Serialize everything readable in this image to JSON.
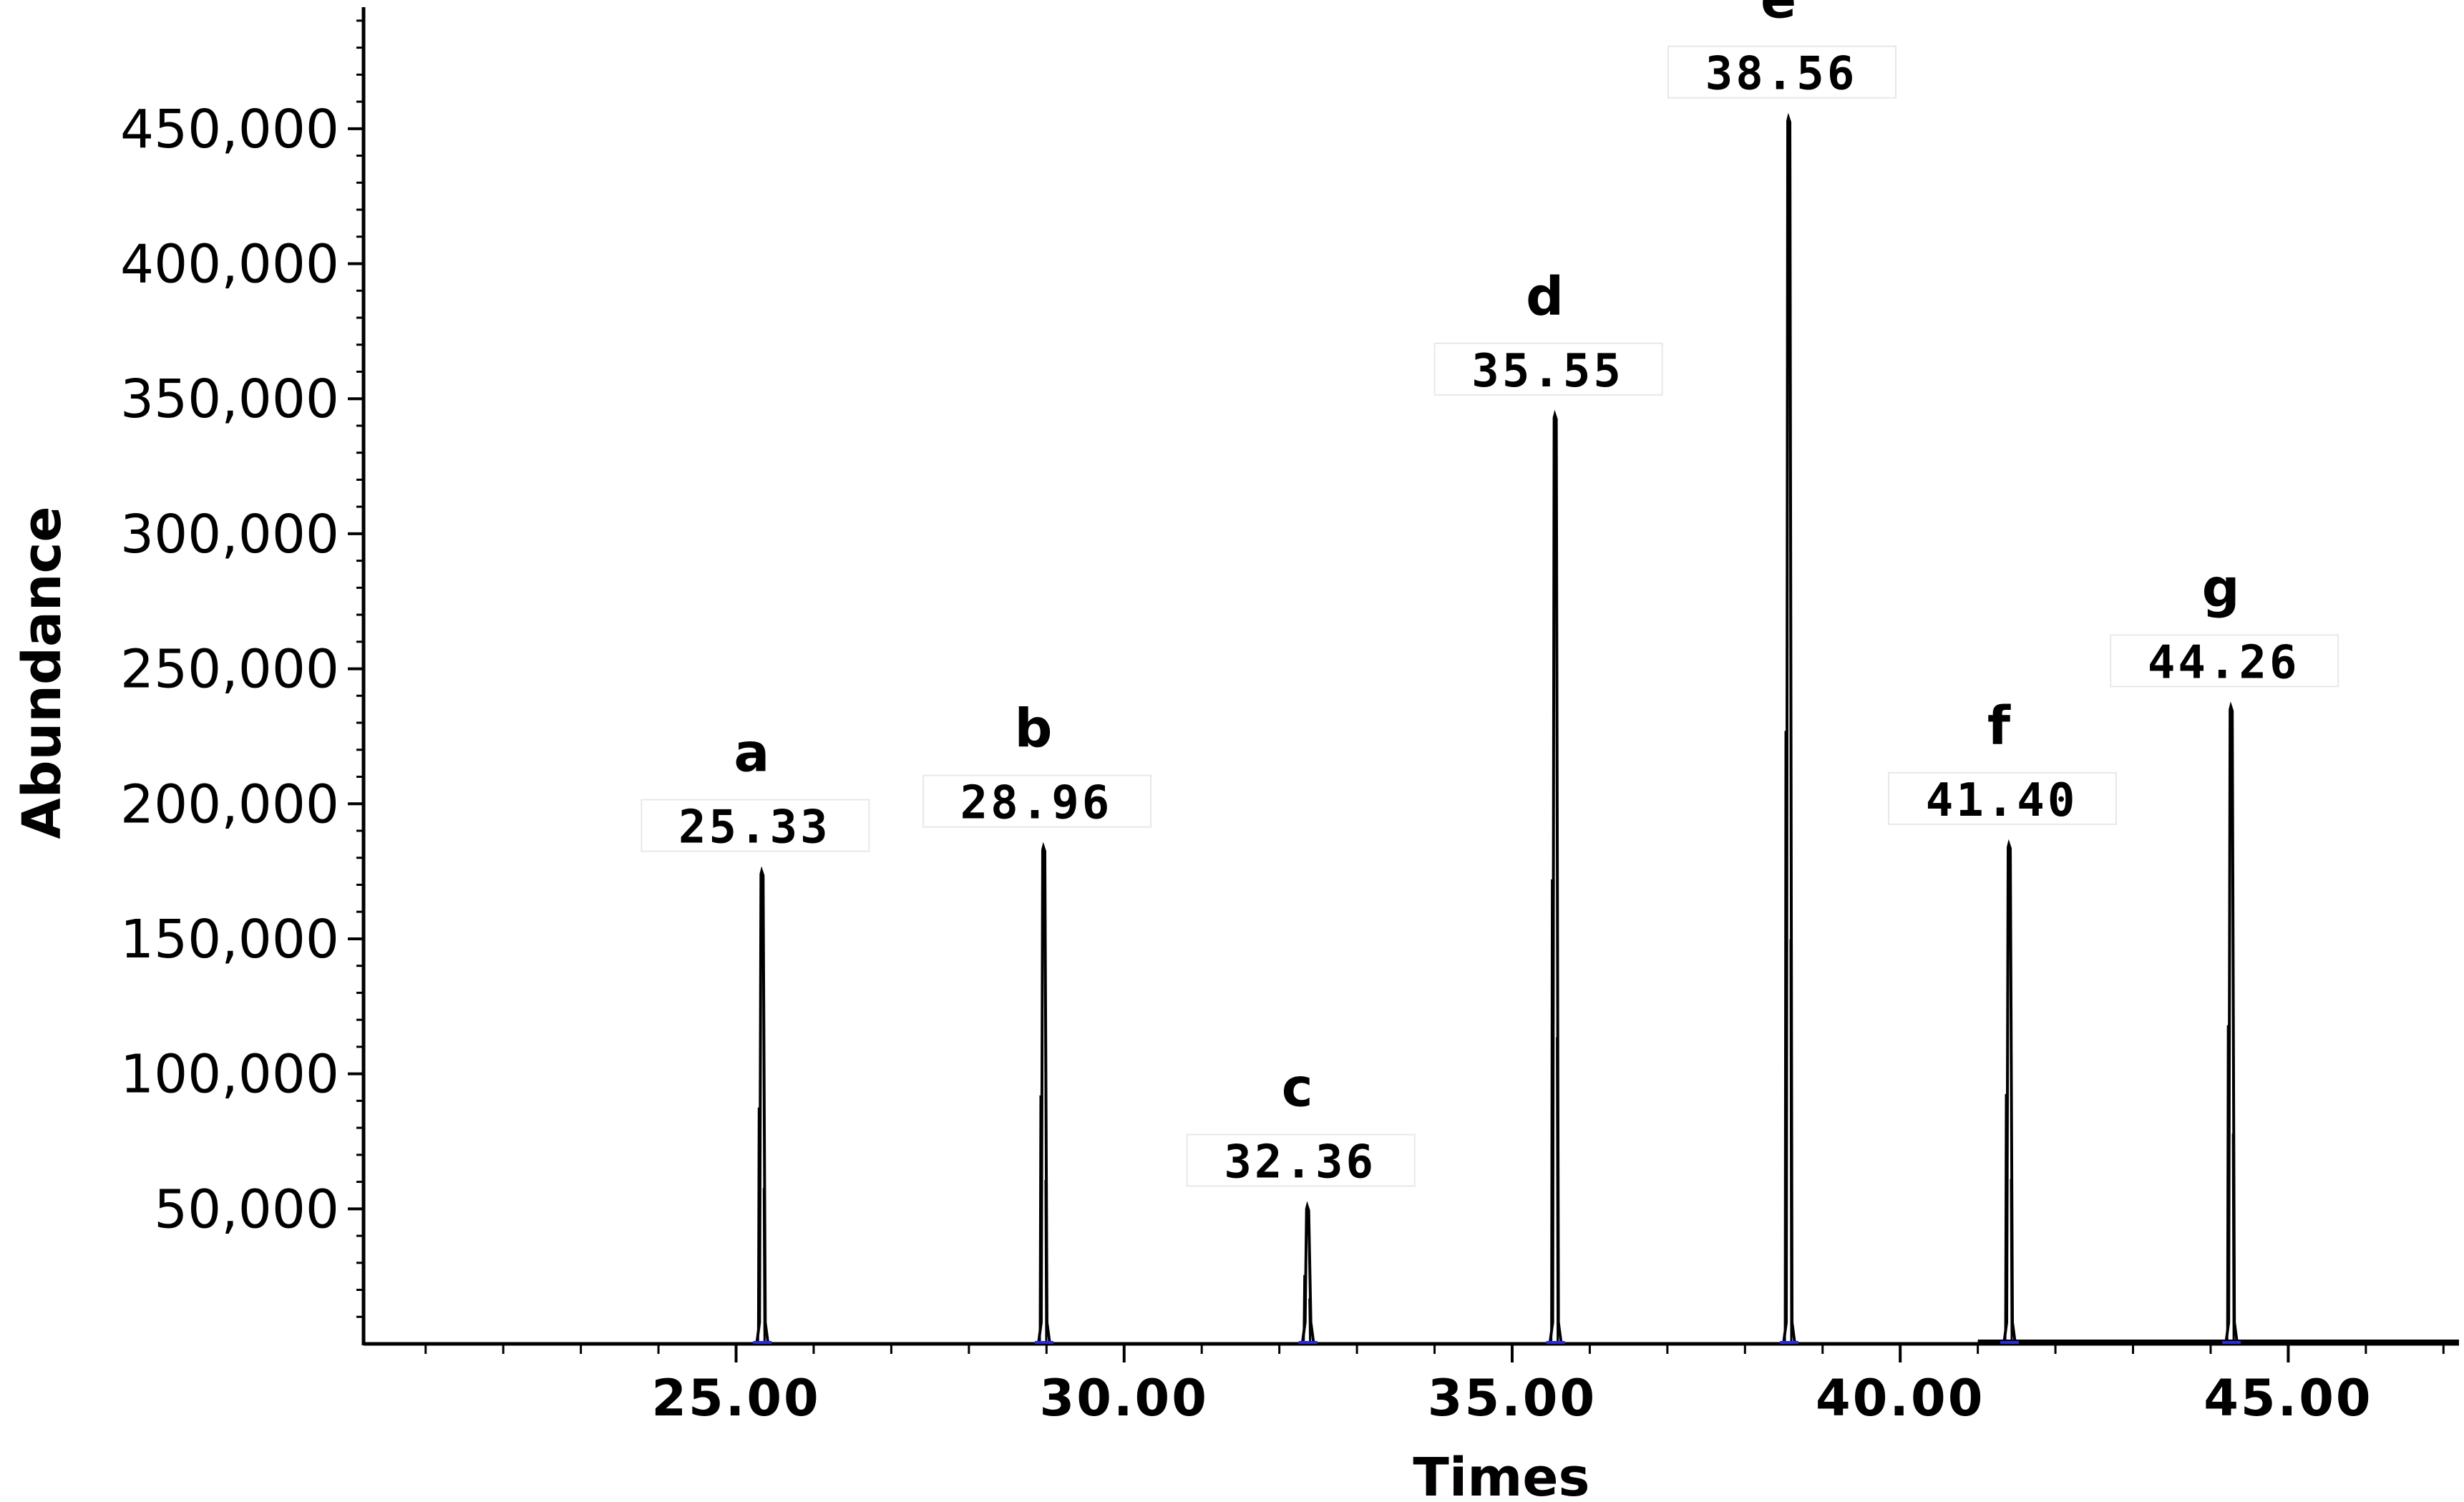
{
  "chart_data": {
    "type": "line",
    "title": "",
    "xlabel": "Times",
    "ylabel": "Abundance",
    "xlim": [
      20.2,
      47.2
    ],
    "ylim": [
      0,
      495000
    ],
    "x_ticks": [
      25,
      30,
      35,
      40,
      45
    ],
    "x_tick_labels": [
      "25.00",
      "30.00",
      "35.00",
      "40.00",
      "45.00"
    ],
    "y_ticks": [
      50000,
      100000,
      150000,
      200000,
      250000,
      300000,
      350000,
      400000,
      450000
    ],
    "y_tick_labels": [
      "50,000",
      "100,000",
      "150,000",
      "200,000",
      "250,000",
      "300,000",
      "350,000",
      "400,000",
      "450,000"
    ],
    "grid": false,
    "legend": "none",
    "line_color": "#000000",
    "peaks": [
      {
        "letter": "a",
        "rt": 25.33,
        "rt_label": "25.33",
        "abundance": 175000
      },
      {
        "letter": "b",
        "rt": 28.96,
        "rt_label": "28.96",
        "abundance": 184000
      },
      {
        "letter": "c",
        "rt": 32.36,
        "rt_label": "32.36",
        "abundance": 51000
      },
      {
        "letter": "d",
        "rt": 35.55,
        "rt_label": "35.55",
        "abundance": 344000
      },
      {
        "letter": "e",
        "rt": 38.56,
        "rt_label": "38.56",
        "abundance": 454000
      },
      {
        "letter": "f",
        "rt": 41.4,
        "rt_label": "41.40",
        "abundance": 185000
      },
      {
        "letter": "g",
        "rt": 44.26,
        "rt_label": "44.26",
        "abundance": 236000
      }
    ]
  }
}
